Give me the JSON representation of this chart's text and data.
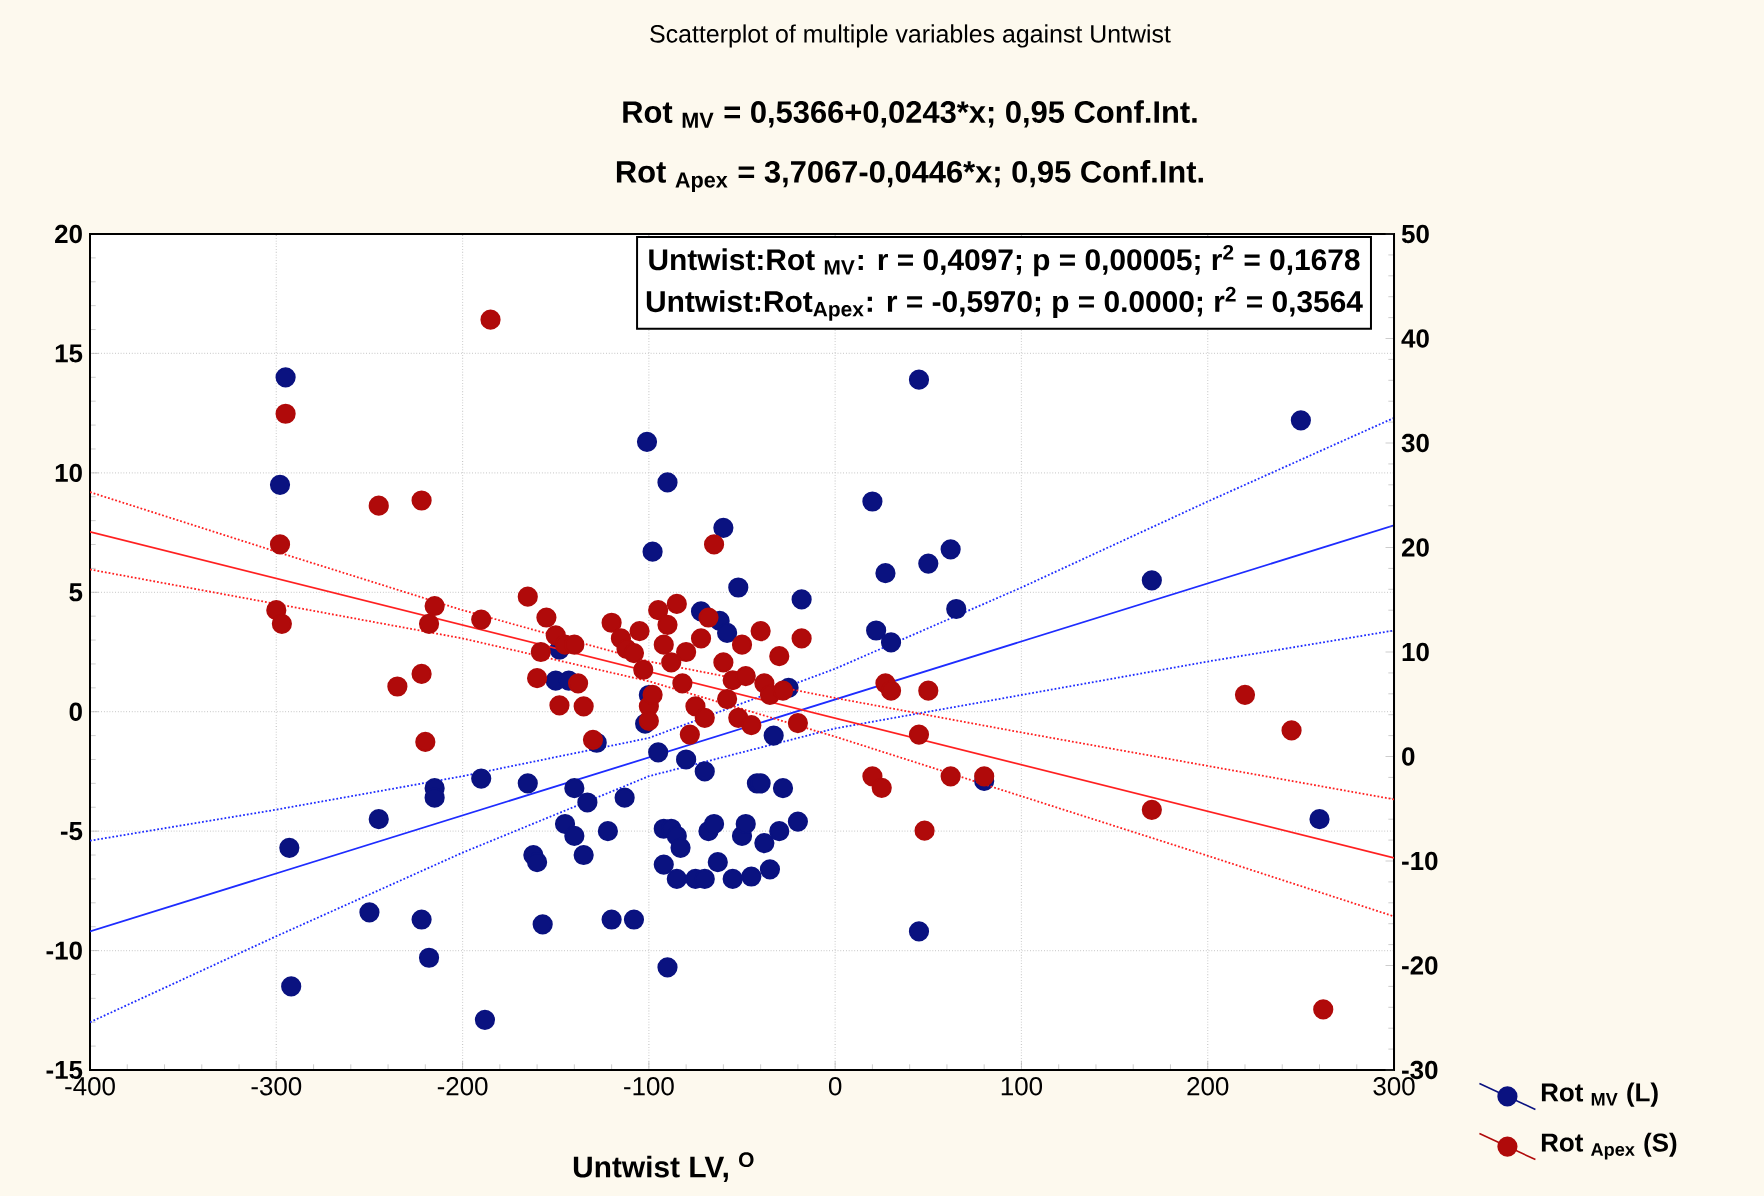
{
  "chart_data": {
    "type": "scatter",
    "title": "Scatterplot of multiple variables against Untwist",
    "subtitle": "Rot $_{MV}$ = 0,5366+0,0243*x;  0,95 Conf.Int.",
    "xlabel": "Untwist LV, $^{O}$",
    "annotations": [
      "Rot $_{Apex}$ = 3,7067-0,0446*x;  0,95 Conf.Int.",
      "Untwist:Rot $_{MV}$:   r = 0,4097; p = 0,00005; r$^{2}$ = 0,1678",
      "Untwist:Rot$_{Apex}$:   r = -0,5970; p = 0.0000; r$^{2}$ = 0,3564"
    ],
    "xlim": [
      -400,
      300
    ],
    "xticks": [
      -400,
      -300,
      -200,
      -100,
      0,
      100,
      200,
      300
    ],
    "ylim": [
      -15,
      20
    ],
    "yticks": [
      -15,
      -10,
      -5,
      0,
      5,
      10,
      15,
      20
    ],
    "y2lim": [
      -30,
      50
    ],
    "y2ticks": [
      -30,
      -20,
      -10,
      0,
      10,
      20,
      30,
      40,
      50
    ],
    "grid": true,
    "legend": "bottom right",
    "marker": "circle",
    "series": [
      {
        "name": "Rot $_{MV}$ (L)",
        "color": "#0a1280",
        "axis": "y",
        "x": [
          -295,
          -298,
          -293,
          -292,
          -245,
          -250,
          -222,
          -218,
          -215,
          -215,
          -190,
          -188,
          -165,
          -162,
          -160,
          -157,
          -150,
          -148,
          -143,
          -145,
          -140,
          -140,
          -135,
          -133,
          -128,
          -122,
          -120,
          -113,
          -108,
          -102,
          -101,
          -100,
          -98,
          -95,
          -92,
          -92,
          -90,
          -90,
          -88,
          -85,
          -85,
          -83,
          -80,
          -75,
          -72,
          -70,
          -70,
          -68,
          -65,
          -63,
          -62,
          -60,
          -58,
          -55,
          -52,
          -50,
          -48,
          -45,
          -42,
          -40,
          -38,
          -35,
          -33,
          -30,
          -28,
          -25,
          -20,
          -18,
          20,
          22,
          27,
          30,
          45,
          45,
          50,
          62,
          65,
          80,
          170,
          250,
          260
        ],
        "values": [
          14.0,
          9.5,
          -5.7,
          -11.5,
          -4.5,
          -8.4,
          -8.7,
          -10.3,
          -3.2,
          -3.6,
          -2.8,
          -12.9,
          -3.0,
          -6.0,
          -6.3,
          -8.9,
          1.3,
          2.6,
          1.3,
          -4.7,
          -3.2,
          -5.2,
          -6.0,
          -3.8,
          -1.3,
          -5.0,
          -8.7,
          -3.6,
          -8.7,
          -0.5,
          11.3,
          0.7,
          6.7,
          -1.7,
          -4.9,
          -6.4,
          -10.7,
          9.6,
          -4.9,
          -5.2,
          -7.0,
          -5.7,
          -2.0,
          -7.0,
          4.2,
          -2.5,
          -7.0,
          -5.0,
          -4.7,
          -6.3,
          3.8,
          7.7,
          3.3,
          -7.0,
          5.2,
          -5.2,
          -4.7,
          -6.9,
          -3.0,
          -3.0,
          -5.5,
          -6.6,
          -1.0,
          -5.0,
          -3.2,
          1.0,
          -4.6,
          4.7,
          8.8,
          3.4,
          5.8,
          2.9,
          13.9,
          -9.2,
          6.2,
          6.8,
          4.3,
          -2.9,
          5.5,
          12.2,
          -4.5
        ]
      },
      {
        "name": "Rot $_{Apex}$ (S)",
        "color": "#b00a0a",
        "axis": "y2",
        "x": [
          -295,
          -298,
          -300,
          -297,
          -245,
          -235,
          -222,
          -222,
          -220,
          -218,
          -215,
          -185,
          -190,
          -165,
          -160,
          -158,
          -155,
          -150,
          -148,
          -145,
          -140,
          -138,
          -135,
          -130,
          -120,
          -115,
          -112,
          -108,
          -105,
          -103,
          -100,
          -100,
          -98,
          -95,
          -92,
          -90,
          -88,
          -85,
          -82,
          -80,
          -78,
          -75,
          -72,
          -70,
          -68,
          -65,
          -60,
          -58,
          -55,
          -52,
          -50,
          -48,
          -45,
          -40,
          -38,
          -35,
          -30,
          -28,
          -20,
          -18,
          20,
          25,
          27,
          30,
          45,
          50,
          48,
          62,
          80,
          170,
          220,
          245,
          262
        ],
        "values": [
          32.8,
          20.3,
          14.0,
          12.7,
          24.0,
          6.7,
          24.5,
          7.9,
          1.4,
          12.7,
          14.4,
          41.8,
          13.1,
          15.3,
          7.5,
          10.0,
          13.3,
          11.6,
          4.9,
          10.7,
          10.7,
          7.0,
          4.8,
          1.6,
          12.8,
          11.3,
          10.3,
          9.9,
          12.0,
          8.3,
          4.8,
          3.4,
          5.9,
          14.0,
          10.7,
          12.6,
          9.0,
          14.6,
          7.0,
          10.0,
          2.1,
          4.8,
          11.3,
          3.7,
          13.3,
          20.3,
          9.0,
          5.5,
          7.3,
          3.7,
          10.7,
          7.7,
          3.0,
          12.0,
          7.0,
          5.9,
          9.6,
          6.3,
          3.2,
          11.3,
          -1.9,
          -3.0,
          7.0,
          6.3,
          2.1,
          6.3,
          -7.1,
          -1.9,
          -1.9,
          -5.1,
          5.9,
          2.5,
          -24.2
        ]
      },
      {
        "type": "line",
        "color": "#1e2cff",
        "axis": "y",
        "marker": "none",
        "line_style": "solid",
        "x": [
          -400,
          300
        ],
        "values": [
          -9.2,
          7.8
        ]
      },
      {
        "type": "line",
        "color": "#1e2cff",
        "axis": "y",
        "marker": "none",
        "line_style": "dotted",
        "x": [
          -400,
          -300,
          -200,
          -100,
          0,
          100,
          200,
          300
        ],
        "values": [
          -5.4,
          -4.1,
          -2.7,
          -1.1,
          1.8,
          5.2,
          8.8,
          12.3
        ]
      },
      {
        "type": "line",
        "color": "#1e2cff",
        "axis": "y",
        "marker": "none",
        "line_style": "dotted",
        "x": [
          -400,
          -300,
          -200,
          -100,
          0,
          100,
          200,
          300
        ],
        "values": [
          -13.0,
          -9.4,
          -5.9,
          -2.7,
          -0.7,
          0.7,
          2.1,
          3.4
        ]
      },
      {
        "type": "line",
        "color": "#ff2020",
        "axis": "y2",
        "marker": "none",
        "line_style": "solid",
        "x": [
          -400,
          300
        ],
        "values": [
          21.5,
          -9.7
        ]
      },
      {
        "type": "line",
        "color": "#ff2020",
        "axis": "y2",
        "marker": "none",
        "line_style": "dotted",
        "x": [
          -400,
          -300,
          -200,
          -100,
          0,
          100,
          200,
          300
        ],
        "values": [
          25.3,
          19.6,
          14.0,
          9.1,
          5.6,
          2.3,
          -0.9,
          -4.1
        ]
      },
      {
        "type": "line",
        "color": "#ff2020",
        "axis": "y2",
        "marker": "none",
        "line_style": "dotted",
        "x": [
          -400,
          -300,
          -200,
          -100,
          0,
          100,
          200,
          300
        ],
        "values": [
          17.9,
          14.6,
          11.3,
          7.2,
          1.9,
          -3.8,
          -9.5,
          -15.3
        ]
      }
    ]
  }
}
